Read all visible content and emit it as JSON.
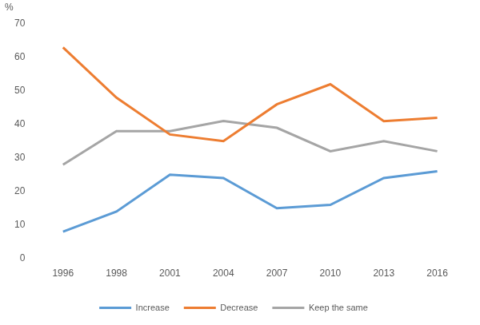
{
  "chart_data": {
    "type": "line",
    "ylabel": "%",
    "categories": [
      "1996",
      "1998",
      "2001",
      "2004",
      "2007",
      "2010",
      "2013",
      "2016"
    ],
    "series": [
      {
        "name": "Increase",
        "color": "#5b9bd5",
        "values": [
          8,
          14,
          25,
          24,
          15,
          16,
          24,
          26
        ]
      },
      {
        "name": "Decrease",
        "color": "#ed7d31",
        "values": [
          63,
          48,
          37,
          35,
          46,
          52,
          41,
          42
        ]
      },
      {
        "name": "Keep the same",
        "color": "#a5a5a5",
        "values": [
          28,
          38,
          38,
          41,
          39,
          32,
          35,
          32
        ]
      }
    ],
    "ylim": [
      0,
      70
    ],
    "yticks": [
      0,
      10,
      20,
      30,
      40,
      50,
      60,
      70
    ],
    "grid": false,
    "legend": "bottom"
  }
}
